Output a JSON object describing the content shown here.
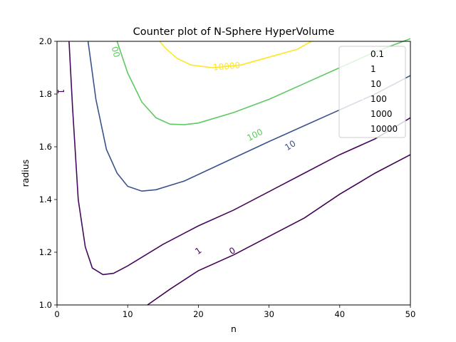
{
  "chart_data": {
    "type": "contour",
    "title": "Counter plot of N-Sphere HyperVolume",
    "xlabel": "n",
    "ylabel": "radius",
    "xlim": [
      0,
      50
    ],
    "ylim": [
      1.0,
      2.0
    ],
    "x_ticks": [
      0,
      10,
      20,
      30,
      40,
      50
    ],
    "y_ticks": [
      1.0,
      1.2,
      1.4,
      1.6,
      1.8,
      2.0
    ],
    "x_tick_labels": [
      "0",
      "10",
      "20",
      "30",
      "40",
      "50"
    ],
    "y_tick_labels": [
      "1.0",
      "1.2",
      "1.4",
      "1.6",
      "1.8",
      "2.0"
    ],
    "legend_position": "top-right",
    "grid": false,
    "series": [
      {
        "name": "0.1",
        "color": "#440154",
        "points": [
          [
            12.8,
            1.0
          ],
          [
            16,
            1.06
          ],
          [
            20,
            1.13
          ],
          [
            25,
            1.19
          ],
          [
            30,
            1.26
          ],
          [
            35,
            1.33
          ],
          [
            40,
            1.42
          ],
          [
            45,
            1.5
          ],
          [
            50,
            1.57
          ]
        ],
        "inline_label": {
          "text": "0",
          "at": [
            24.8,
            1.205
          ],
          "angle": -30
        }
      },
      {
        "name": "1",
        "color": "#46085c",
        "points": [
          [
            1.7,
            2.0
          ],
          [
            2.2,
            1.75
          ],
          [
            3.0,
            1.4
          ],
          [
            4.0,
            1.22
          ],
          [
            5.0,
            1.14
          ],
          [
            6.5,
            1.115
          ],
          [
            8,
            1.12
          ],
          [
            10,
            1.148
          ],
          [
            15,
            1.23
          ],
          [
            20,
            1.3
          ],
          [
            25,
            1.36
          ],
          [
            30,
            1.43
          ],
          [
            35,
            1.5
          ],
          [
            40,
            1.57
          ],
          [
            45,
            1.63
          ],
          [
            50,
            1.71
          ]
        ],
        "inline_label": {
          "text": "1",
          "at": [
            20.0,
            1.205
          ],
          "angle": -35
        },
        "extra_label": {
          "text": "1",
          "at": [
            0.5,
            1.81
          ],
          "angle": 90
        }
      },
      {
        "name": "10",
        "color": "#3b528b",
        "points": [
          [
            4.4,
            2.0
          ],
          [
            5.5,
            1.78
          ],
          [
            7,
            1.59
          ],
          [
            8.5,
            1.5
          ],
          [
            10,
            1.45
          ],
          [
            12,
            1.432
          ],
          [
            14,
            1.437
          ],
          [
            18,
            1.47
          ],
          [
            22,
            1.52
          ],
          [
            26,
            1.57
          ],
          [
            30,
            1.62
          ],
          [
            35,
            1.68
          ],
          [
            40,
            1.74
          ],
          [
            45,
            1.8
          ],
          [
            50,
            1.87
          ]
        ],
        "inline_label": {
          "text": "10",
          "at": [
            33.0,
            1.605
          ],
          "angle": -32
        }
      },
      {
        "name": "100",
        "color": "#21918c",
        "points": [
          [
            4.2,
            2.0
          ]
        ],
        "hidden_line": true
      },
      {
        "name": "1000",
        "color": "#5ec962",
        "points": [
          [
            8.5,
            2.0
          ],
          [
            10,
            1.88
          ],
          [
            12,
            1.77
          ],
          [
            14,
            1.71
          ],
          [
            16,
            1.686
          ],
          [
            18,
            1.684
          ],
          [
            20,
            1.69
          ],
          [
            25,
            1.73
          ],
          [
            30,
            1.78
          ],
          [
            35,
            1.84
          ],
          [
            40,
            1.9
          ],
          [
            45,
            1.96
          ],
          [
            50,
            2.01
          ]
        ],
        "inline_label": {
          "text": "100",
          "at": [
            28.0,
            1.645
          ],
          "angle": -27
        },
        "extra_label": {
          "text": "00",
          "at": [
            8.3,
            1.96
          ],
          "angle": 75
        }
      },
      {
        "name": "10000",
        "color": "#fde725",
        "points": [
          [
            14.5,
            2.0
          ],
          [
            15.5,
            1.97
          ],
          [
            17,
            1.935
          ],
          [
            19,
            1.91
          ],
          [
            22,
            1.9
          ],
          [
            26,
            1.91
          ],
          [
            30,
            1.94
          ],
          [
            34,
            1.97
          ],
          [
            36,
            2.0
          ]
        ],
        "inline_label": {
          "text": "10000",
          "at": [
            24.0,
            1.905
          ],
          "angle": -5
        }
      }
    ],
    "legend_entries": [
      "0.1",
      "1",
      "10",
      "100",
      "1000",
      "10000"
    ]
  }
}
